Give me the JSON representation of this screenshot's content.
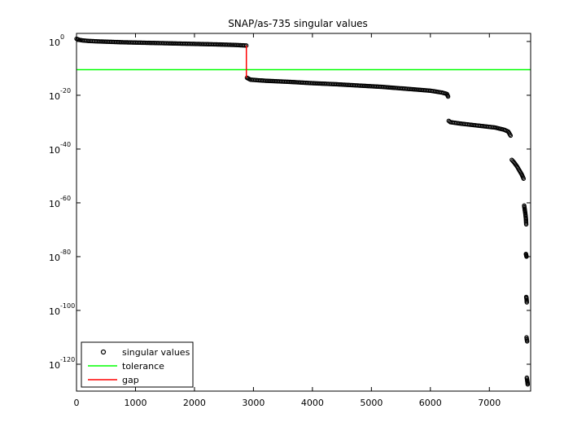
{
  "chart_data": {
    "type": "scatter",
    "title": "SNAP/as-735 singular values",
    "xlabel": "",
    "ylabel": "",
    "xlim": [
      0,
      7700
    ],
    "ylim_exponent": [
      -130,
      3
    ],
    "y_scale": "log",
    "grid": false,
    "legend_position": "bottom-left",
    "x_ticks": [
      {
        "value": 0,
        "label": "0"
      },
      {
        "value": 1000,
        "label": "1000"
      },
      {
        "value": 2000,
        "label": "2000"
      },
      {
        "value": 3000,
        "label": "3000"
      },
      {
        "value": 4000,
        "label": "4000"
      },
      {
        "value": 5000,
        "label": "5000"
      },
      {
        "value": 6000,
        "label": "6000"
      },
      {
        "value": 7000,
        "label": "7000"
      }
    ],
    "y_ticks": [
      {
        "exponent": 0,
        "base": "10",
        "exp_label": "0"
      },
      {
        "exponent": -20,
        "base": "10",
        "exp_label": "-20"
      },
      {
        "exponent": -40,
        "base": "10",
        "exp_label": "-40"
      },
      {
        "exponent": -60,
        "base": "10",
        "exp_label": "-60"
      },
      {
        "exponent": -80,
        "base": "10",
        "exp_label": "-80"
      },
      {
        "exponent": -100,
        "base": "10",
        "exp_label": "-100"
      },
      {
        "exponent": -120,
        "base": "10",
        "exp_label": "-120"
      }
    ],
    "legend": [
      {
        "label": "singular values",
        "color": "#000000",
        "marker": "circle"
      },
      {
        "label": "tolerance",
        "color": "#00ff00",
        "marker": "line"
      },
      {
        "label": "gap",
        "color": "#ff0000",
        "marker": "line"
      }
    ],
    "tolerance_exponent": -10.5,
    "gap": {
      "x": 2880,
      "from_exponent": -1.5,
      "to_exponent": -13.5
    },
    "series": [
      {
        "name": "singular values",
        "color": "#000000",
        "segments": [
          {
            "x": [
              0,
              50,
              100,
              200,
              400,
              800,
              1200,
              1600,
              2000,
              2400,
              2700,
              2880
            ],
            "exponent": [
              1.0,
              0.6,
              0.4,
              0.2,
              0.0,
              -0.3,
              -0.5,
              -0.7,
              -0.9,
              -1.1,
              -1.3,
              -1.5
            ]
          },
          {
            "x": [
              2890,
              2950,
              3200,
              3600,
              4000,
              4400,
              4800,
              5200,
              5600,
              6000,
              6200,
              6280,
              6300
            ],
            "exponent": [
              -13.5,
              -14.2,
              -14.6,
              -15.0,
              -15.5,
              -15.9,
              -16.4,
              -16.9,
              -17.6,
              -18.3,
              -19.0,
              -19.5,
              -20.5
            ]
          },
          {
            "x": [
              6310,
              6340,
              6500,
              6700,
              6900,
              7100,
              7250,
              7320,
              7360
            ],
            "exponent": [
              -29.5,
              -30.0,
              -30.5,
              -31.0,
              -31.5,
              -32.0,
              -32.8,
              -33.5,
              -35.0
            ]
          },
          {
            "x": [
              7380,
              7420,
              7470,
              7510,
              7550,
              7580
            ],
            "exponent": [
              -44.0,
              -45.0,
              -46.5,
              -48.0,
              -49.5,
              -51.0
            ]
          },
          {
            "x": [
              7590,
              7600,
              7610,
              7620,
              7625
            ],
            "exponent": [
              -61.0,
              -62.5,
              -64.0,
              -66.0,
              -68.0
            ]
          },
          {
            "x": [
              7620,
              7625,
              7630
            ],
            "exponent": [
              -79.0,
              -79.5,
              -80.0
            ]
          },
          {
            "x": [
              7625,
              7630,
              7635
            ],
            "exponent": [
              -95.0,
              -95.5,
              -97.0
            ]
          },
          {
            "x": [
              7630,
              7635,
              7640
            ],
            "exponent": [
              -110.0,
              -110.8,
              -111.5
            ]
          },
          {
            "x": [
              7635,
              7640,
              7645,
              7650
            ],
            "exponent": [
              -125.0,
              -125.8,
              -126.5,
              -127.5
            ]
          }
        ]
      }
    ]
  }
}
